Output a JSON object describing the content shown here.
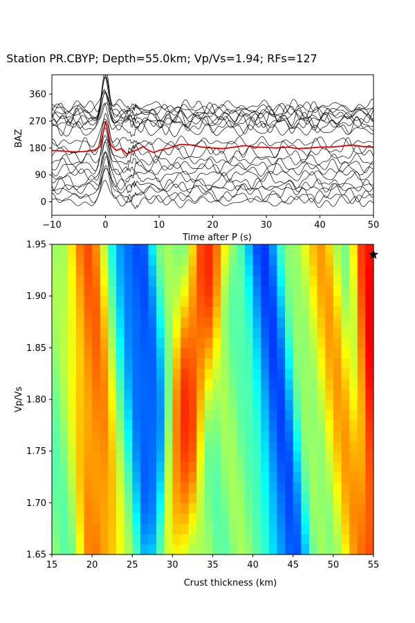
{
  "figure": {
    "title": "Station PR.CBYP; Depth=55.0km; Vp/Vs=1.94; RFs=127"
  },
  "chart_data": [
    {
      "type": "line",
      "panel": "receiver-functions",
      "xlabel": "Time after P (s)",
      "ylabel": "BAZ",
      "xlim": [
        -10,
        50
      ],
      "ylim": [
        -45,
        425
      ],
      "xticks": [
        -10,
        0,
        10,
        20,
        30,
        40,
        50
      ],
      "yticks": [
        0,
        90,
        180,
        270,
        360
      ],
      "trace_color": "#000000",
      "stack_color": "#e00000",
      "trace_count": 127,
      "trace_baz_lines": [
        0,
        15,
        30,
        45,
        55,
        70,
        90,
        110,
        120,
        140,
        160,
        180,
        200,
        240,
        255,
        265,
        270,
        280,
        290,
        295,
        300,
        310,
        320
      ],
      "trace_amplitude_scale": 120,
      "stack": {
        "name": "",
        "x": [
          -10,
          -8,
          -6,
          -4,
          -2,
          -1,
          -0.5,
          0,
          0.5,
          1,
          2,
          3,
          4,
          5,
          6,
          7,
          8,
          9,
          10,
          12,
          14,
          16,
          18,
          20,
          22,
          24,
          26,
          28,
          30,
          32,
          34,
          36,
          38,
          40,
          42,
          44,
          46,
          48,
          50
        ],
        "y": [
          172,
          170,
          167,
          168,
          173,
          185,
          225,
          270,
          230,
          190,
          172,
          178,
          160,
          168,
          175,
          185,
          172,
          165,
          172,
          180,
          192,
          190,
          183,
          180,
          178,
          183,
          188,
          183,
          182,
          180,
          183,
          178,
          180,
          183,
          183,
          186,
          190,
          185,
          183
        ]
      }
    },
    {
      "type": "heatmap",
      "panel": "h-kappa-grid",
      "xlabel": "Crust thickness (km)",
      "ylabel": "Vp/Vs",
      "xlim": [
        15,
        55
      ],
      "ylim": [
        1.65,
        1.95
      ],
      "xticks": [
        15,
        20,
        25,
        30,
        35,
        40,
        45,
        50,
        55
      ],
      "yticks": [
        "1.65",
        "1.70",
        "1.75",
        "1.80",
        "1.85",
        "1.90",
        "1.95"
      ],
      "colormap": "jet",
      "colormap_stops": [
        "#00007f",
        "#0000ff",
        "#007fff",
        "#00ffff",
        "#7fff7f",
        "#ffff00",
        "#ff7f00",
        "#ff0000",
        "#7f0000"
      ],
      "grid_size": {
        "cols": 40,
        "rows": 30
      },
      "features": [
        {
          "label": "ridge",
          "h_at_195": 19.2,
          "h_at_165": 21.0,
          "value": 0.85
        },
        {
          "label": "trough",
          "h_at_195": 25.0,
          "h_at_165": 28.5,
          "value": 0.08
        },
        {
          "label": "ridge",
          "h_at_195": 34.5,
          "h_at_165": 29.5,
          "value": 0.9
        },
        {
          "label": "trough",
          "h_at_195": 41.0,
          "h_at_165": 44.5,
          "value": 0.12
        },
        {
          "label": "ridge",
          "h_at_195": 48.0,
          "h_at_165": 53.0,
          "value": 0.75
        },
        {
          "label": "ridge",
          "h_at_195": 55.0,
          "h_at_165": 55.5,
          "value": 0.98
        }
      ],
      "best_fit": {
        "thickness_km": 55.0,
        "vpvs": 1.94,
        "marker": "star"
      }
    }
  ]
}
